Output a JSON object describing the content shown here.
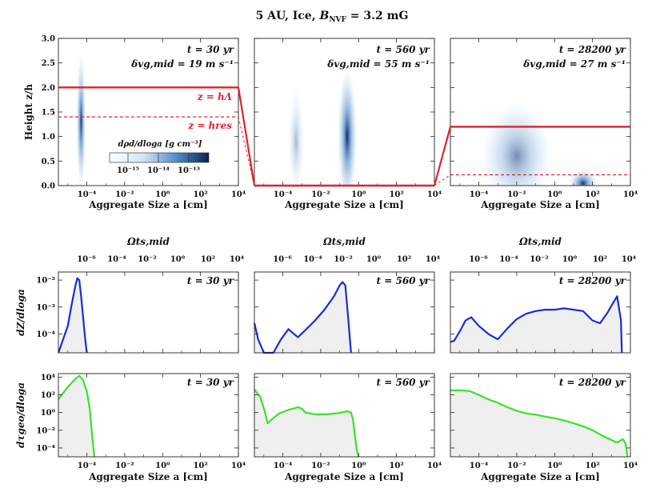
{
  "figure": {
    "title": "5 AU,  Ice,  B_NVF = 3.2 mG",
    "title_parts": {
      "pre": "5 AU,  Ice,  ",
      "b": "B",
      "sub": "NVF",
      "post": " = 3.2 mG"
    },
    "colorbar_label": "dρd/dloga  [g cm⁻³]",
    "colorbar_ticks": [
      "10⁻¹⁵",
      "10⁻¹⁴",
      "10⁻¹³"
    ],
    "line_labels": {
      "h_lambda": "z = hΛ",
      "h_res": "z = hres"
    },
    "colors": {
      "red": "#e0212a",
      "blue": "#1b2bd6",
      "green": "#37e32a",
      "fill": "#efefef",
      "heat": "#0b2c6e"
    }
  },
  "chart_data": [
    {
      "type": "heatmap",
      "row": "top",
      "ylabel": "Height  z/h",
      "xlabel": "Aggregate Size  a [cm]",
      "xlim_log10": [
        -5.5,
        4
      ],
      "ylim": [
        0,
        3
      ],
      "x_ticks": [
        "10⁻⁴",
        "10⁻²",
        "10⁰",
        "10²",
        "10⁴"
      ],
      "y_ticks": [
        "0.0",
        "0.5",
        "1.0",
        "1.5",
        "2.0",
        "2.5",
        "3.0"
      ],
      "panels": [
        {
          "time": "t = 30 yr",
          "dv": "δvg,mid = 19 m s⁻¹",
          "h_lambda": 2.0,
          "h_res": 1.4,
          "blobs": [
            {
              "x_log10": -4.3,
              "width_log10": 0.55,
              "z_center": 1.3,
              "z_extent": 3.0,
              "peak": 0.95
            }
          ]
        },
        {
          "time": "t = 560 yr",
          "dv": "δvg,mid = 55 m s⁻¹",
          "h_lambda": 0.0,
          "h_res": 0.0,
          "blobs": [
            {
              "x_log10": -3.3,
              "width_log10": 0.9,
              "z_center": 0.9,
              "z_extent": 2.3,
              "peak": 0.35
            },
            {
              "x_log10": -0.6,
              "width_log10": 1.1,
              "z_center": 1.0,
              "z_extent": 3.0,
              "peak": 1.0
            }
          ]
        },
        {
          "time": "t = 28200 yr",
          "dv": "δvg,mid = 27 m s⁻¹",
          "h_lambda": 1.2,
          "h_res": 0.22,
          "blobs": [
            {
              "x_log10": -2.0,
              "width_log10": 4.0,
              "z_center": 0.6,
              "z_extent": 2.4,
              "peak": 0.55
            },
            {
              "x_log10": 1.5,
              "width_log10": 1.6,
              "z_center": 0.05,
              "z_extent": 0.6,
              "peak": 0.95
            }
          ]
        }
      ]
    },
    {
      "type": "line",
      "row": "middle",
      "ylabel": "dZ/dloga",
      "top_axis_label": "Ωts,mid",
      "top_ticks": [
        "10⁻⁶",
        "10⁻⁴",
        "10⁻²",
        "10⁰",
        "10²",
        "10⁴"
      ],
      "xlim_log10": [
        -5.5,
        4
      ],
      "ylim_log10": [
        -4.7,
        -1.7
      ],
      "y_ticks": [
        "10⁻⁴",
        "10⁻³",
        "10⁻²"
      ],
      "panels": [
        {
          "time": "t = 30 yr",
          "series": [
            {
              "name": "dZ/dloga",
              "color": "blue",
              "x_log10": [
                -5.5,
                -5.0,
                -4.8,
                -4.6,
                -4.5,
                -4.4,
                -4.3,
                -4.1,
                -4.0
              ],
              "y_log10": [
                -4.7,
                -3.7,
                -2.9,
                -2.2,
                -1.93,
                -2.0,
                -2.6,
                -4.1,
                -4.7
              ]
            }
          ]
        },
        {
          "time": "t = 560 yr",
          "series": [
            {
              "name": "dZ/dloga",
              "color": "blue",
              "x_log10": [
                -5.5,
                -5.3,
                -5.0,
                -4.8,
                -4.5,
                -4.1,
                -3.7,
                -3.5,
                -3.2,
                -2.8,
                -2.3,
                -1.8,
                -1.3,
                -1.0,
                -0.85,
                -0.7,
                -0.55,
                -0.4
              ],
              "y_log10": [
                -3.6,
                -4.2,
                -4.7,
                -4.7,
                -4.7,
                -4.2,
                -3.82,
                -3.95,
                -4.12,
                -3.85,
                -3.5,
                -3.1,
                -2.6,
                -2.2,
                -2.07,
                -2.2,
                -3.4,
                -4.7
              ]
            }
          ]
        },
        {
          "time": "t = 28200 yr",
          "series": [
            {
              "name": "dZ/dloga",
              "color": "blue",
              "x_log10": [
                -5.5,
                -5.3,
                -5.0,
                -4.7,
                -4.4,
                -4.0,
                -3.5,
                -3.0,
                -2.5,
                -2.0,
                -1.5,
                -1.0,
                -0.5,
                0.0,
                0.5,
                1.0,
                1.5,
                2.0,
                2.4,
                2.8,
                3.0,
                3.3,
                3.5,
                3.55
              ],
              "y_log10": [
                -4.3,
                -4.25,
                -3.9,
                -3.5,
                -3.38,
                -3.7,
                -4.0,
                -4.2,
                -3.8,
                -3.45,
                -3.25,
                -3.15,
                -3.1,
                -3.1,
                -3.05,
                -3.1,
                -3.15,
                -3.5,
                -3.6,
                -3.2,
                -2.95,
                -2.6,
                -3.5,
                -4.7
              ]
            }
          ]
        }
      ]
    },
    {
      "type": "line",
      "row": "bottom",
      "ylabel": "dτgeo/dloga",
      "xlabel": "Aggregate Size  a [cm]",
      "x_ticks": [
        "10⁻⁴",
        "10⁻²",
        "10⁰",
        "10²",
        "10⁴"
      ],
      "xlim_log10": [
        -5.5,
        4
      ],
      "ylim_log10": [
        -5,
        4.4
      ],
      "y_ticks": [
        "10⁻⁴",
        "10⁻²",
        "10⁰",
        "10²",
        "10⁴"
      ],
      "panels": [
        {
          "time": "t = 30 yr",
          "series": [
            {
              "name": "dτgeo/dloga",
              "color": "green",
              "x_log10": [
                -5.5,
                -5.0,
                -4.6,
                -4.4,
                -4.2,
                -4.0,
                -3.85,
                -3.7,
                -3.6
              ],
              "y_log10": [
                1.5,
                2.9,
                3.8,
                4.15,
                3.7,
                2.4,
                0.5,
                -3.0,
                -5.0
              ]
            }
          ]
        },
        {
          "time": "t = 560 yr",
          "series": [
            {
              "name": "dτgeo/dloga",
              "color": "green",
              "x_log10": [
                -5.5,
                -5.2,
                -5.0,
                -4.8,
                -4.6,
                -4.2,
                -3.7,
                -3.2,
                -3.0,
                -2.8,
                -2.3,
                -1.7,
                -1.0,
                -0.6,
                -0.4,
                -0.3,
                -0.2,
                -0.1,
                0.0
              ],
              "y_log10": [
                2.6,
                1.8,
                0.5,
                -1.2,
                -0.8,
                -0.1,
                0.3,
                0.6,
                0.45,
                0.0,
                -0.2,
                -0.2,
                -0.05,
                0.15,
                0.0,
                -0.8,
                -2.5,
                -4.2,
                -5.0
              ]
            }
          ]
        },
        {
          "time": "t = 28200 yr",
          "series": [
            {
              "name": "dτgeo/dloga",
              "color": "green",
              "x_log10": [
                -5.5,
                -5.0,
                -4.5,
                -4.0,
                -3.5,
                -3.0,
                -2.5,
                -2.0,
                -1.5,
                -1.0,
                -0.5,
                0.0,
                0.5,
                1.0,
                1.5,
                2.0,
                2.5,
                3.0,
                3.3,
                3.6,
                3.75,
                3.85
              ],
              "y_log10": [
                2.5,
                2.5,
                2.45,
                2.0,
                1.5,
                1.1,
                0.6,
                0.2,
                -0.1,
                -0.25,
                -0.45,
                -0.65,
                -0.9,
                -1.2,
                -1.55,
                -2.0,
                -2.6,
                -3.1,
                -3.4,
                -3.0,
                -3.5,
                -5.0
              ]
            }
          ]
        }
      ]
    }
  ]
}
